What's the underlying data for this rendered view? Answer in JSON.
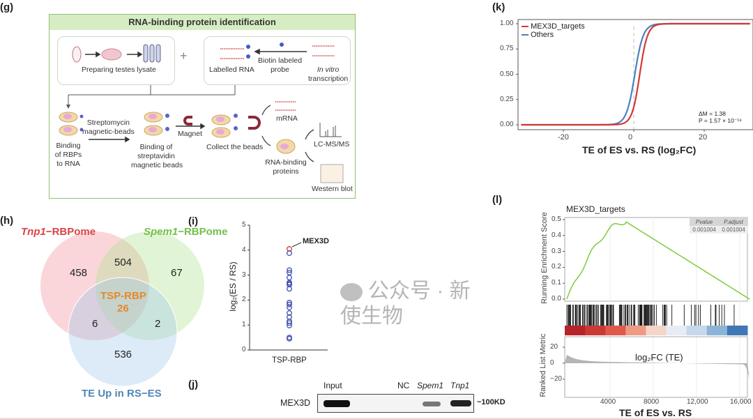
{
  "panels": {
    "g": "(g)",
    "h": "(h)",
    "i": "(i)",
    "j": "(j)",
    "k": "(k)",
    "l": "(l)"
  },
  "g": {
    "title": "RNA-binding protein identification",
    "plus": "+",
    "prep": "Preparing testes lysate",
    "labelled": "Labelled RNA",
    "biotin": "Biotin labeled",
    "probe": "probe",
    "invitro": "In vitro",
    "transcription": "transcription",
    "binding1": [
      "Binding",
      "of RBPs",
      "to RNA"
    ],
    "strep": [
      "Streptomycin",
      "magnetic-beads"
    ],
    "binding2": [
      "Binding of",
      "streptavidin",
      "magnetic beads"
    ],
    "magnet": "Magnet",
    "collect": "Collect the beads",
    "mrna": "mRNA",
    "rbp": [
      "RNA-binding",
      "proteins"
    ],
    "lcms": "LC-MS/MS",
    "western": "Western blot",
    "colors": {
      "header": "#d6edc3",
      "border": "#8fbf70"
    }
  },
  "h": {
    "set1": {
      "gene": "Tnp1",
      "suffix": "−RBPome",
      "color": "#d9434a"
    },
    "set2": {
      "gene": "Spem1",
      "suffix": "−RBPome",
      "color": "#74c04a"
    },
    "set3": {
      "label": "TE Up in RS−ES",
      "color": "#4f86b5"
    },
    "counts": {
      "only1": "458",
      "only2": "67",
      "only3": "536",
      "s12": "504",
      "s13": "6",
      "s23": "2",
      "all_label": "TSP-RBP",
      "all": "26"
    }
  },
  "i": {
    "ylabel": "log₂(ES / RS)",
    "yticks": [
      "0",
      "1",
      "2",
      "3",
      "4",
      "5"
    ],
    "xlabel": "TSP-RBP",
    "highlight": "MEX3D",
    "values": [
      4.05,
      3.88,
      3.2,
      3.1,
      2.9,
      2.7,
      2.65,
      2.62,
      2.45,
      1.9,
      1.82,
      1.7,
      1.48,
      1.32,
      1.15,
      1.08,
      0.98,
      0.5,
      0.45
    ],
    "highlight_value": 4.05
  },
  "j": {
    "lanes": [
      "Input",
      "NC",
      "Spem1",
      "Tnp1"
    ],
    "row": "MEX3D",
    "size": "~100KD"
  },
  "k": {
    "legend": [
      "MEX3D_targets",
      "Others"
    ],
    "colors": [
      "#d23a32",
      "#4a82bd"
    ],
    "yticks": [
      "0.00",
      "0.25",
      "0.50",
      "0.75",
      "1.00"
    ],
    "xticks": [
      "-20",
      "0",
      "20"
    ],
    "xlabel": "TE of ES vs. RS (log₂FC)",
    "stat1": "ΔM = 1.38",
    "stat2": "P = 1.57 × 10⁻¹⁹"
  },
  "l": {
    "title": "MEX3D_targets",
    "ylabel_top": "Running Enrichment Score",
    "ylabel_bottom": "Ranked List Metric",
    "yticks_top": [
      "0.0",
      "0.1",
      "0.2",
      "0.3",
      "0.4",
      "0.5"
    ],
    "yticks_bottom": [
      "20",
      "0",
      "−20"
    ],
    "xticks": [
      "4000",
      "8000",
      "12,000",
      "16,000"
    ],
    "xlabel": "TE of ES vs. RS",
    "inner_label": "log₂FC (TE)",
    "table": {
      "headers": [
        "Pvalue",
        "P.adjust"
      ],
      "values": [
        "0.001004",
        "0.001004"
      ]
    },
    "curve_color": "#7ccc3a"
  },
  "watermark": "公众号 · 新使生物"
}
